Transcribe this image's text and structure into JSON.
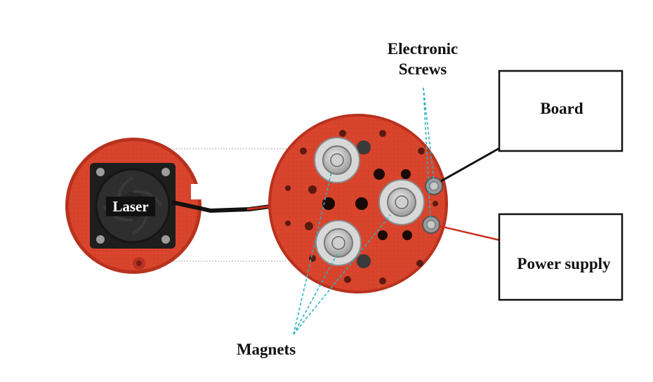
{
  "labels": {
    "laser": "Laser",
    "board": "Board",
    "power_supply": "Power supply",
    "electronic_screws_line1": "Electronic",
    "electronic_screws_line2": "Screws",
    "magnets": "Magnets"
  },
  "colors": {
    "housing_red": "#d9442c",
    "housing_dark": "#b8321e",
    "fan_black": "#1e1e1e",
    "magnet_silver": "#bdbdbd",
    "leader_cyan": "#2ab0c8",
    "wire_red": "#c8301e",
    "wire_black": "#111111",
    "box_border": "#111111"
  },
  "icons": {
    "fan": "cooling-fan-icon",
    "magnet": "ring-magnet-icon",
    "screw": "screw-head-icon"
  }
}
